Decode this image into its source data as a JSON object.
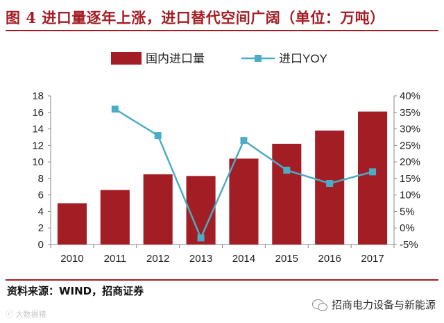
{
  "figure": {
    "title": "图 4 进口量逐年上涨，进口替代空间广阔（单位：万吨）",
    "source": "资料来源：WIND，招商证券",
    "watermark_left": "ⓒ 大数据猪",
    "watermark_right": "招商电力设备与新能源"
  },
  "colors": {
    "bar": "#a31d24",
    "line": "#4bacc6",
    "accent": "#a31d24",
    "axis": "#888888"
  },
  "chart_data": {
    "type": "bar",
    "categories": [
      "2010",
      "2011",
      "2012",
      "2013",
      "2014",
      "2015",
      "2016",
      "2017"
    ],
    "series": [
      {
        "name": "国内进口量",
        "type": "bar",
        "axis": "left",
        "values": [
          5.0,
          6.6,
          8.5,
          8.3,
          10.4,
          12.2,
          13.8,
          16.1
        ]
      },
      {
        "name": "进口YOY",
        "type": "line",
        "axis": "right",
        "values": [
          null,
          36,
          28,
          -3,
          26.5,
          17.5,
          13.5,
          17
        ]
      }
    ],
    "y_left": {
      "min": 0,
      "max": 18,
      "ticks": [
        "0",
        "2",
        "4",
        "6",
        "8",
        "10",
        "12",
        "14",
        "16",
        "18"
      ]
    },
    "y_right": {
      "min": -5,
      "max": 40,
      "ticks": [
        "-5%",
        "0%",
        "5%",
        "10%",
        "15%",
        "20%",
        "25%",
        "30%",
        "35%",
        "40%"
      ]
    },
    "legend_position": "top",
    "grid": false
  }
}
